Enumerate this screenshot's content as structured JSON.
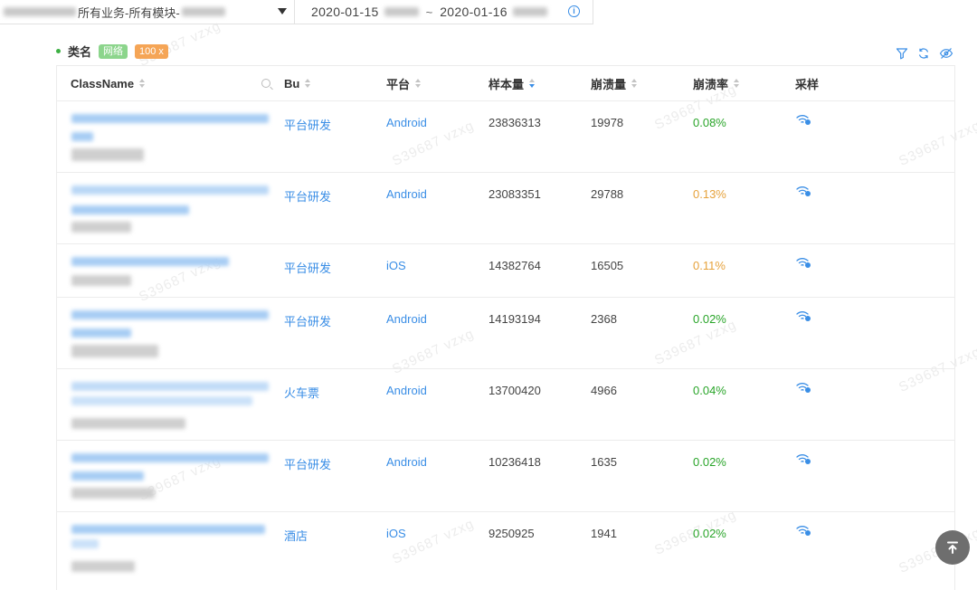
{
  "topbar": {
    "scope_text": "所有业务-所有模块-",
    "date_start": "2020-01-15",
    "date_sep": "~",
    "date_end": "2020-01-16",
    "info_icon": "info-circle-icon"
  },
  "title": {
    "label": "类名",
    "tag_network": "网络",
    "tag_count": "100 x"
  },
  "tools": [
    "filter-icon",
    "refresh-icon",
    "hide-eye-icon"
  ],
  "table": {
    "headers": {
      "classname": "ClassName",
      "bu": "Bu",
      "platform": "平台",
      "samples": "样本量",
      "crashes": "崩溃量",
      "crash_rate": "崩溃率",
      "sampling": "采样"
    },
    "rows": [
      {
        "bu": "平台研发",
        "platform": "Android",
        "samples": "23836313",
        "crashes": "19978",
        "rate": "0.08%",
        "rate_color": "green"
      },
      {
        "bu": "平台研发",
        "platform": "Android",
        "samples": "23083351",
        "crashes": "29788",
        "rate": "0.13%",
        "rate_color": "orange"
      },
      {
        "bu": "平台研发",
        "platform": "iOS",
        "samples": "14382764",
        "crashes": "16505",
        "rate": "0.11%",
        "rate_color": "orange"
      },
      {
        "bu": "平台研发",
        "platform": "Android",
        "samples": "14193194",
        "crashes": "2368",
        "rate": "0.02%",
        "rate_color": "green"
      },
      {
        "bu": "火车票",
        "platform": "Android",
        "samples": "13700420",
        "crashes": "4966",
        "rate": "0.04%",
        "rate_color": "green"
      },
      {
        "bu": "平台研发",
        "platform": "Android",
        "samples": "10236418",
        "crashes": "1635",
        "rate": "0.02%",
        "rate_color": "green"
      },
      {
        "bu": "酒店",
        "platform": "iOS",
        "samples": "9250925",
        "crashes": "1941",
        "rate": "0.02%",
        "rate_color": "green"
      }
    ]
  },
  "colors": {
    "link": "#3a8ee6",
    "rate_green": "#2aa52a",
    "rate_orange": "#e6a23c",
    "tag_network": "#8cd58c",
    "tag_count": "#f5a556"
  },
  "back_to_top_icon": "arrow-up-to-line-icon"
}
